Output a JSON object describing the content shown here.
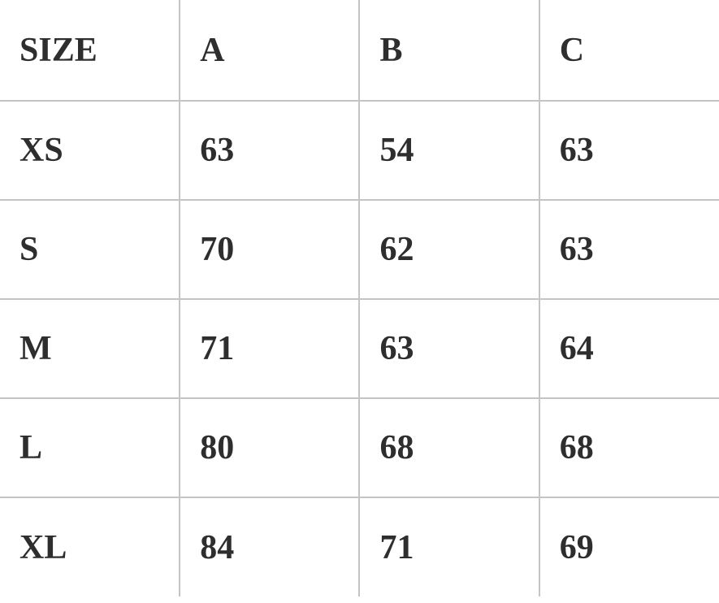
{
  "table": {
    "headers": [
      "SIZE",
      "A",
      "B",
      "C"
    ],
    "rows": [
      [
        "XS",
        "63",
        "54",
        "63"
      ],
      [
        "S",
        "70",
        "62",
        "63"
      ],
      [
        "M",
        "71",
        "63",
        "64"
      ],
      [
        "L",
        "80",
        "68",
        "68"
      ],
      [
        "XL",
        "84",
        "71",
        "69"
      ]
    ]
  },
  "colors": {
    "text": "#2e2e2e",
    "grid": "#c4c4c4",
    "background": "#ffffff"
  }
}
